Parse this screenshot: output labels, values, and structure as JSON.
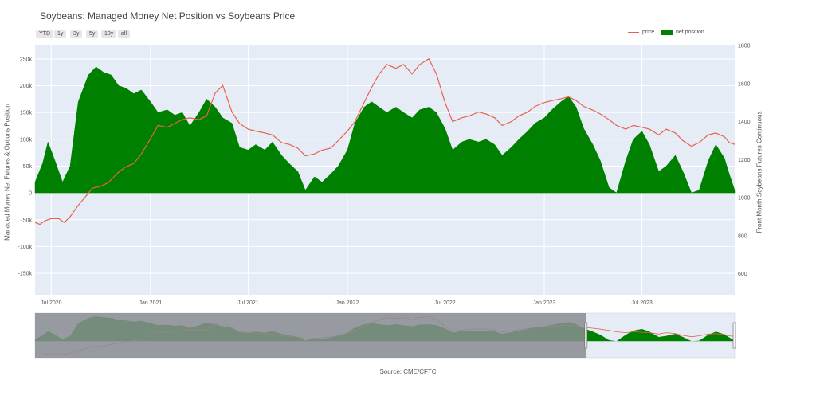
{
  "title": "Soybeans: Managed Money Net Position vs Soybeans Price",
  "range_buttons": [
    "YTD",
    "1y",
    "3y",
    "5y",
    "10y",
    "all"
  ],
  "legend": {
    "price": "price",
    "net_position": "net position"
  },
  "source": "Source: CME/CFTC",
  "colors": {
    "price": "#e8614f",
    "net_position": "#008000",
    "plot_bg": "#e5ecf6",
    "range_mask": "#8a8d92"
  },
  "chart_data": {
    "type": "area",
    "title": "Soybeans: Managed Money Net Position vs Soybeans Price",
    "ylabel": "Managed Money Net Futures & Options Position",
    "y2label": "Front Month Soybeans Futures Continuous",
    "ylim": [
      -190000,
      275000
    ],
    "y2lim": [
      490,
      1800
    ],
    "xlim": [
      "2020-06-01",
      "2023-12-20"
    ],
    "xticks": [
      "Jul 2020",
      "Jan 2021",
      "Jul 2021",
      "Jan 2022",
      "Jul 2022",
      "Jan 2023",
      "Jul 2023"
    ],
    "yticks": [
      "-150k",
      "-100k",
      "-50k",
      "0",
      "50k",
      "100k",
      "150k",
      "200k",
      "250k"
    ],
    "y2ticks": [
      "600",
      "800",
      "1000",
      "1200",
      "1400",
      "1600",
      "1800"
    ],
    "grid": true,
    "legend_position": "top-right",
    "series": [
      {
        "name": "net position",
        "axis": "y",
        "style": "filled-area",
        "points": [
          [
            "2020-06-01",
            20000
          ],
          [
            "2020-06-15",
            55000
          ],
          [
            "2020-06-25",
            95000
          ],
          [
            "2020-07-08",
            60000
          ],
          [
            "2020-07-22",
            20000
          ],
          [
            "2020-08-05",
            50000
          ],
          [
            "2020-08-20",
            170000
          ],
          [
            "2020-09-08",
            220000
          ],
          [
            "2020-09-22",
            235000
          ],
          [
            "2020-10-06",
            225000
          ],
          [
            "2020-10-20",
            220000
          ],
          [
            "2020-11-03",
            200000
          ],
          [
            "2020-11-17",
            195000
          ],
          [
            "2020-12-01",
            185000
          ],
          [
            "2020-12-15",
            192000
          ],
          [
            "2021-01-01",
            170000
          ],
          [
            "2021-01-15",
            150000
          ],
          [
            "2021-02-01",
            155000
          ],
          [
            "2021-02-15",
            145000
          ],
          [
            "2021-03-01",
            150000
          ],
          [
            "2021-03-15",
            125000
          ],
          [
            "2021-04-01",
            150000
          ],
          [
            "2021-04-15",
            175000
          ],
          [
            "2021-05-01",
            160000
          ],
          [
            "2021-05-15",
            140000
          ],
          [
            "2021-06-01",
            130000
          ],
          [
            "2021-06-15",
            85000
          ],
          [
            "2021-07-01",
            80000
          ],
          [
            "2021-07-15",
            90000
          ],
          [
            "2021-08-01",
            80000
          ],
          [
            "2021-08-15",
            95000
          ],
          [
            "2021-09-01",
            70000
          ],
          [
            "2021-09-15",
            55000
          ],
          [
            "2021-10-01",
            40000
          ],
          [
            "2021-10-15",
            5000
          ],
          [
            "2021-11-01",
            30000
          ],
          [
            "2021-11-15",
            20000
          ],
          [
            "2021-12-01",
            35000
          ],
          [
            "2021-12-15",
            50000
          ],
          [
            "2022-01-01",
            80000
          ],
          [
            "2022-01-15",
            130000
          ],
          [
            "2022-02-01",
            160000
          ],
          [
            "2022-02-15",
            170000
          ],
          [
            "2022-03-01",
            160000
          ],
          [
            "2022-03-15",
            150000
          ],
          [
            "2022-04-01",
            160000
          ],
          [
            "2022-04-15",
            150000
          ],
          [
            "2022-05-01",
            140000
          ],
          [
            "2022-05-15",
            155000
          ],
          [
            "2022-06-01",
            160000
          ],
          [
            "2022-06-15",
            150000
          ],
          [
            "2022-07-01",
            120000
          ],
          [
            "2022-07-15",
            80000
          ],
          [
            "2022-08-01",
            95000
          ],
          [
            "2022-08-15",
            100000
          ],
          [
            "2022-09-01",
            95000
          ],
          [
            "2022-09-15",
            100000
          ],
          [
            "2022-10-01",
            90000
          ],
          [
            "2022-10-15",
            70000
          ],
          [
            "2022-11-01",
            85000
          ],
          [
            "2022-11-15",
            100000
          ],
          [
            "2022-12-01",
            115000
          ],
          [
            "2022-12-15",
            130000
          ],
          [
            "2023-01-01",
            140000
          ],
          [
            "2023-01-15",
            155000
          ],
          [
            "2023-02-01",
            170000
          ],
          [
            "2023-02-15",
            180000
          ],
          [
            "2023-03-01",
            160000
          ],
          [
            "2023-03-15",
            120000
          ],
          [
            "2023-04-01",
            90000
          ],
          [
            "2023-04-15",
            60000
          ],
          [
            "2023-05-01",
            10000
          ],
          [
            "2023-05-15",
            0
          ],
          [
            "2023-06-01",
            60000
          ],
          [
            "2023-06-15",
            100000
          ],
          [
            "2023-07-01",
            115000
          ],
          [
            "2023-07-15",
            90000
          ],
          [
            "2023-08-01",
            40000
          ],
          [
            "2023-08-15",
            50000
          ],
          [
            "2023-09-01",
            70000
          ],
          [
            "2023-09-15",
            40000
          ],
          [
            "2023-10-01",
            0
          ],
          [
            "2023-10-15",
            5000
          ],
          [
            "2023-11-01",
            60000
          ],
          [
            "2023-11-15",
            90000
          ],
          [
            "2023-12-01",
            65000
          ],
          [
            "2023-12-10",
            35000
          ],
          [
            "2023-12-20",
            5000
          ]
        ]
      },
      {
        "name": "price",
        "axis": "y2",
        "style": "line",
        "points": [
          [
            "2020-06-01",
            870
          ],
          [
            "2020-06-10",
            860
          ],
          [
            "2020-06-20",
            880
          ],
          [
            "2020-07-01",
            890
          ],
          [
            "2020-07-15",
            890
          ],
          [
            "2020-07-25",
            870
          ],
          [
            "2020-08-05",
            900
          ],
          [
            "2020-08-20",
            960
          ],
          [
            "2020-09-01",
            1000
          ],
          [
            "2020-09-15",
            1050
          ],
          [
            "2020-10-01",
            1060
          ],
          [
            "2020-10-15",
            1080
          ],
          [
            "2020-11-01",
            1130
          ],
          [
            "2020-11-15",
            1160
          ],
          [
            "2020-12-01",
            1180
          ],
          [
            "2020-12-15",
            1230
          ],
          [
            "2021-01-01",
            1310
          ],
          [
            "2021-01-15",
            1380
          ],
          [
            "2021-02-01",
            1370
          ],
          [
            "2021-02-15",
            1390
          ],
          [
            "2021-03-01",
            1410
          ],
          [
            "2021-03-15",
            1420
          ],
          [
            "2021-04-01",
            1410
          ],
          [
            "2021-04-15",
            1430
          ],
          [
            "2021-05-01",
            1550
          ],
          [
            "2021-05-15",
            1590
          ],
          [
            "2021-06-01",
            1450
          ],
          [
            "2021-06-15",
            1390
          ],
          [
            "2021-07-01",
            1360
          ],
          [
            "2021-07-15",
            1350
          ],
          [
            "2021-08-01",
            1340
          ],
          [
            "2021-08-15",
            1330
          ],
          [
            "2021-09-01",
            1290
          ],
          [
            "2021-09-15",
            1280
          ],
          [
            "2021-10-01",
            1260
          ],
          [
            "2021-10-15",
            1220
          ],
          [
            "2021-11-01",
            1230
          ],
          [
            "2021-11-15",
            1250
          ],
          [
            "2021-12-01",
            1260
          ],
          [
            "2021-12-15",
            1300
          ],
          [
            "2022-01-01",
            1350
          ],
          [
            "2022-01-15",
            1400
          ],
          [
            "2022-02-01",
            1500
          ],
          [
            "2022-02-15",
            1580
          ],
          [
            "2022-03-01",
            1650
          ],
          [
            "2022-03-15",
            1700
          ],
          [
            "2022-04-01",
            1680
          ],
          [
            "2022-04-15",
            1700
          ],
          [
            "2022-05-01",
            1650
          ],
          [
            "2022-05-15",
            1700
          ],
          [
            "2022-06-01",
            1730
          ],
          [
            "2022-06-15",
            1650
          ],
          [
            "2022-07-01",
            1500
          ],
          [
            "2022-07-15",
            1400
          ],
          [
            "2022-08-01",
            1420
          ],
          [
            "2022-08-15",
            1430
          ],
          [
            "2022-09-01",
            1450
          ],
          [
            "2022-09-15",
            1440
          ],
          [
            "2022-10-01",
            1420
          ],
          [
            "2022-10-15",
            1380
          ],
          [
            "2022-11-01",
            1400
          ],
          [
            "2022-11-15",
            1430
          ],
          [
            "2022-12-01",
            1450
          ],
          [
            "2022-12-15",
            1480
          ],
          [
            "2023-01-01",
            1500
          ],
          [
            "2023-01-15",
            1510
          ],
          [
            "2023-02-01",
            1520
          ],
          [
            "2023-02-15",
            1530
          ],
          [
            "2023-03-01",
            1510
          ],
          [
            "2023-03-15",
            1480
          ],
          [
            "2023-04-01",
            1460
          ],
          [
            "2023-04-15",
            1440
          ],
          [
            "2023-05-01",
            1410
          ],
          [
            "2023-05-15",
            1380
          ],
          [
            "2023-06-01",
            1360
          ],
          [
            "2023-06-15",
            1380
          ],
          [
            "2023-07-01",
            1370
          ],
          [
            "2023-07-15",
            1360
          ],
          [
            "2023-08-01",
            1330
          ],
          [
            "2023-08-15",
            1360
          ],
          [
            "2023-09-01",
            1340
          ],
          [
            "2023-09-15",
            1300
          ],
          [
            "2023-10-01",
            1270
          ],
          [
            "2023-10-15",
            1290
          ],
          [
            "2023-11-01",
            1330
          ],
          [
            "2023-11-15",
            1340
          ],
          [
            "2023-12-01",
            1320
          ],
          [
            "2023-12-10",
            1290
          ],
          [
            "2023-12-20",
            1280
          ]
        ]
      }
    ],
    "range_slider": {
      "visible": true,
      "selected_start": "2023-03-20",
      "selected_end": "2023-12-20"
    }
  }
}
